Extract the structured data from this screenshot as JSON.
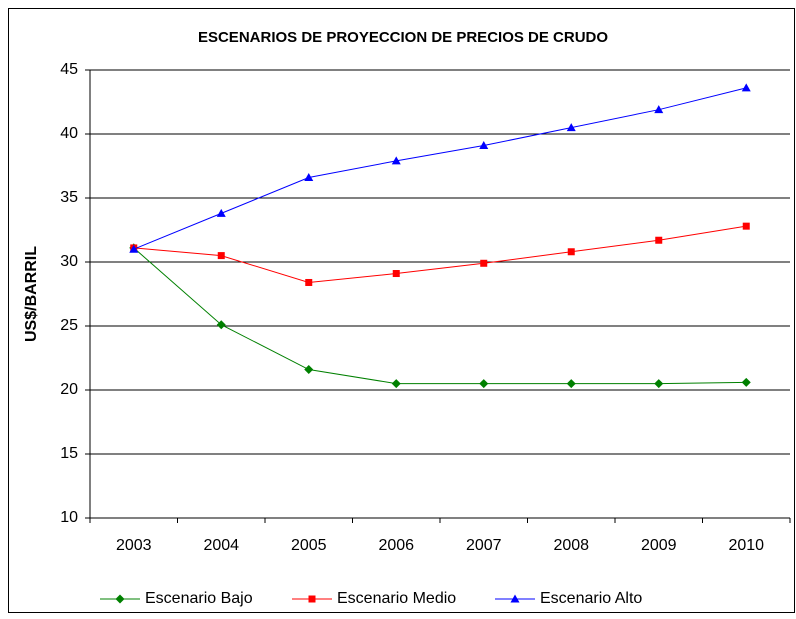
{
  "chart_data": {
    "type": "line",
    "title": "ESCENARIOS DE PROYECCION DE PRECIOS DE CRUDO",
    "y_label": "US$/BARRIL",
    "categories": [
      "2003",
      "2004",
      "2005",
      "2006",
      "2007",
      "2008",
      "2009",
      "2010"
    ],
    "series": [
      {
        "name": "Escenario Bajo",
        "color": "#008000",
        "marker": "diamond",
        "values": [
          31.1,
          25.1,
          21.6,
          20.5,
          20.5,
          20.5,
          20.5,
          20.6
        ]
      },
      {
        "name": "Escenario Medio",
        "color": "#ff0000",
        "marker": "square",
        "values": [
          31.1,
          30.5,
          28.4,
          29.1,
          29.9,
          30.8,
          31.7,
          32.8
        ]
      },
      {
        "name": "Escenario Alto",
        "color": "#0000ff",
        "marker": "triangle",
        "values": [
          31.0,
          33.8,
          36.6,
          37.9,
          39.1,
          40.5,
          41.9,
          43.6
        ]
      }
    ],
    "ylim": [
      10,
      45
    ],
    "yticks": [
      10,
      15,
      20,
      25,
      30,
      35,
      40,
      45
    ],
    "grid": true,
    "legend": "bottom"
  }
}
